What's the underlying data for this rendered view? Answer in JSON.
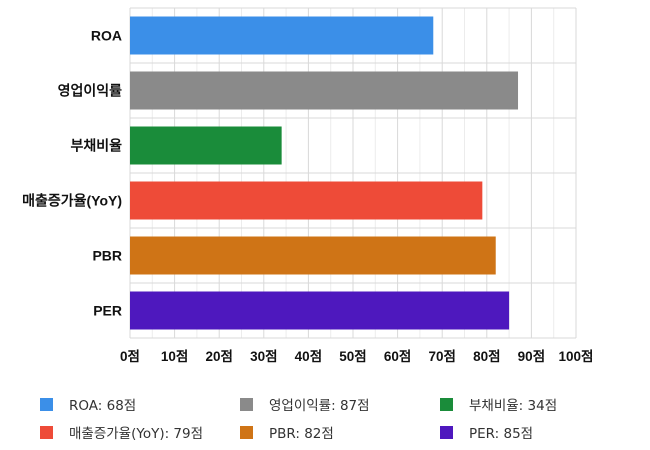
{
  "chart_data": {
    "type": "bar",
    "orientation": "horizontal",
    "categories": [
      "ROA",
      "영업이익률",
      "부채비율",
      "매출증가율(YoY)",
      "PBR",
      "PER"
    ],
    "values": [
      68,
      87,
      34,
      79,
      82,
      85
    ],
    "colors": [
      "#3b8fe8",
      "#8a8a8a",
      "#1a8c3a",
      "#ee4b38",
      "#cf7416",
      "#4e18be"
    ],
    "xlim": [
      0,
      100
    ],
    "xticks": [
      0,
      10,
      20,
      30,
      40,
      50,
      60,
      70,
      80,
      90,
      100
    ],
    "tick_suffix": "점",
    "grid": true,
    "legend_position": "bottom",
    "legend": [
      {
        "label": "ROA: 68점",
        "color": "#3b8fe8"
      },
      {
        "label": "영업이익률: 87점",
        "color": "#8a8a8a"
      },
      {
        "label": "부채비율: 34점",
        "color": "#1a8c3a"
      },
      {
        "label": "매출증가율(YoY): 79점",
        "color": "#ee4b38"
      },
      {
        "label": "PBR: 82점",
        "color": "#cf7416"
      },
      {
        "label": "PER: 85점",
        "color": "#4e18be"
      }
    ]
  }
}
